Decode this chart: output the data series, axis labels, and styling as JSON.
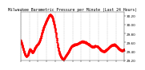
{
  "title": "Milwaukee Barometric Pressure per Minute (Last 24 Hours)",
  "line_color": "#ff0000",
  "bg_color": "#ffffff",
  "plot_bg_color": "#ffffff",
  "grid_color": "#888888",
  "ylim": [
    29.2,
    30.3
  ],
  "yticks": [
    29.2,
    29.4,
    29.6,
    29.8,
    30.0,
    30.2
  ],
  "ytick_labels": [
    "29.20",
    "29.40",
    "29.60",
    "29.80",
    "30.00",
    "30.20"
  ],
  "num_points": 1440,
  "waypoints_x": [
    0,
    50,
    100,
    130,
    160,
    200,
    230,
    260,
    290,
    320,
    360,
    400,
    430,
    460,
    490,
    510,
    540,
    570,
    590,
    620,
    660,
    700,
    750,
    800,
    850,
    900,
    950,
    1000,
    1050,
    1100,
    1150,
    1200,
    1250,
    1300,
    1350,
    1400,
    1439
  ],
  "waypoints_y": [
    29.65,
    29.38,
    29.32,
    29.45,
    29.38,
    29.48,
    29.55,
    29.62,
    29.78,
    29.95,
    30.1,
    30.22,
    30.2,
    30.05,
    29.8,
    29.58,
    29.35,
    29.25,
    29.22,
    29.28,
    29.38,
    29.5,
    29.55,
    29.58,
    29.62,
    29.6,
    29.55,
    29.5,
    29.52,
    29.45,
    29.4,
    29.45,
    29.52,
    29.55,
    29.48,
    29.42,
    29.45
  ],
  "num_vgrid": 12,
  "title_fontsize": 3.5,
  "tick_fontsize": 3.0,
  "line_width": 0.5,
  "marker_size": 0.8
}
